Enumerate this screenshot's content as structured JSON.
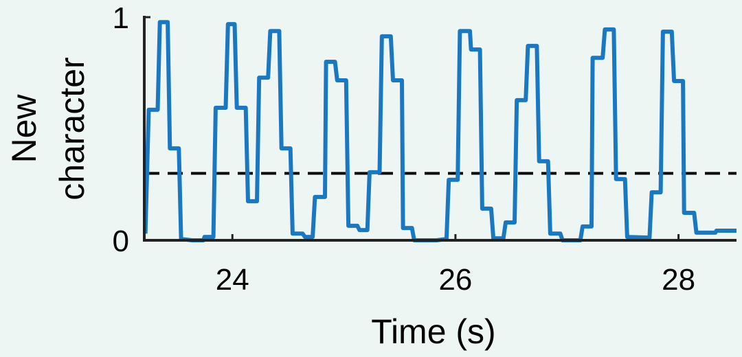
{
  "chart_data": {
    "type": "line",
    "xlabel": "Time (s)",
    "ylabel": [
      "New",
      "character"
    ],
    "xlim": [
      23.21,
      28.52
    ],
    "xticks": [
      24,
      26,
      28
    ],
    "ylim": [
      0,
      1
    ],
    "yticks": [
      0,
      1
    ],
    "hline": 0.3,
    "series": [
      {
        "color": "#1a78c2",
        "x": [
          23.22,
          23.25,
          23.33,
          23.35,
          23.42,
          23.44,
          23.52,
          23.54,
          23.64,
          23.74,
          23.75,
          23.83,
          23.85,
          23.94,
          23.96,
          24.02,
          24.04,
          24.12,
          24.14,
          24.22,
          24.24,
          24.32,
          24.34,
          24.42,
          24.44,
          24.52,
          24.54,
          24.63,
          24.65,
          24.72,
          24.74,
          24.83,
          24.84,
          24.92,
          24.94,
          25.02,
          25.04,
          25.12,
          25.14,
          25.21,
          25.23,
          25.32,
          25.34,
          25.42,
          25.44,
          25.52,
          25.53,
          25.61,
          25.63,
          25.83,
          25.92,
          25.94,
          26.02,
          26.04,
          26.13,
          26.14,
          26.22,
          26.24,
          26.32,
          26.34,
          26.43,
          26.45,
          26.53,
          26.55,
          26.63,
          26.65,
          26.73,
          26.75,
          26.83,
          26.85,
          26.94,
          26.96,
          27.12,
          27.14,
          27.22,
          27.23,
          27.32,
          27.34,
          27.42,
          27.44,
          27.52,
          27.54,
          27.74,
          27.76,
          27.84,
          27.86,
          27.94,
          27.96,
          28.04,
          28.05,
          28.14,
          28.16,
          28.33,
          28.34,
          28.52
        ],
        "values": [
          0.03,
          0.585,
          0.585,
          0.978,
          0.978,
          0.412,
          0.412,
          0.006,
          0,
          0,
          0.015,
          0.015,
          0.594,
          0.594,
          0.969,
          0.969,
          0.594,
          0.594,
          0.175,
          0.175,
          0.729,
          0.729,
          0.938,
          0.938,
          0.412,
          0.412,
          0.03,
          0.03,
          0.015,
          0.015,
          0.194,
          0.194,
          0.8,
          0.8,
          0.717,
          0.717,
          0.065,
          0.065,
          0.046,
          0.046,
          0.305,
          0.305,
          0.914,
          0.914,
          0.717,
          0.717,
          0.055,
          0.055,
          0,
          0,
          0.006,
          0.271,
          0.271,
          0.938,
          0.938,
          0.855,
          0.855,
          0.142,
          0.142,
          0.009,
          0.009,
          0.08,
          0.08,
          0.628,
          0.628,
          0.871,
          0.871,
          0.354,
          0.354,
          0.03,
          0.03,
          0,
          0,
          0.062,
          0.062,
          0.818,
          0.818,
          0.945,
          0.945,
          0.274,
          0.274,
          0.015,
          0.012,
          0.215,
          0.215,
          0.935,
          0.935,
          0.714,
          0.714,
          0.123,
          0.123,
          0.034,
          0.034,
          0.043,
          0.043
        ]
      }
    ]
  }
}
